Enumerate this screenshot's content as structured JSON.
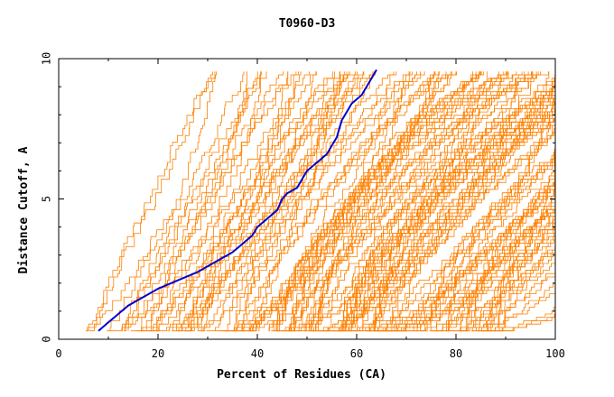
{
  "chart_data": {
    "type": "line",
    "title": "T0960-D3",
    "xlabel": "Percent of Residues (CA)",
    "ylabel": "Distance Cutoff, A",
    "xlim": [
      0,
      100
    ],
    "ylim": [
      0,
      10
    ],
    "x_ticks": [
      0,
      20,
      40,
      60,
      80,
      100
    ],
    "y_ticks": [
      0,
      5,
      10
    ],
    "grid": false,
    "legend": "none",
    "colors": {
      "background_series": "#ff8000",
      "highlight_series": "#0000cc",
      "axes": "#000000"
    },
    "highlight_series": {
      "x": [
        8,
        10,
        12,
        14,
        17,
        20,
        24,
        28,
        32,
        35,
        37,
        39,
        40,
        42,
        44,
        45,
        46,
        48,
        49,
        50,
        52,
        54,
        55,
        56,
        56.5,
        57,
        58,
        59,
        61,
        62,
        63,
        64
      ],
      "y": [
        0.3,
        0.6,
        0.9,
        1.2,
        1.5,
        1.8,
        2.1,
        2.4,
        2.8,
        3.1,
        3.4,
        3.7,
        4.0,
        4.3,
        4.6,
        5.0,
        5.2,
        5.4,
        5.7,
        6.0,
        6.3,
        6.6,
        6.9,
        7.2,
        7.5,
        7.8,
        8.1,
        8.4,
        8.7,
        9.0,
        9.3,
        9.6
      ]
    },
    "background_series_envelope": {
      "left_x": [
        4.5,
        6,
        8,
        10,
        12,
        14,
        15,
        15.5,
        16,
        16,
        16,
        16
      ],
      "right_x": [
        100,
        100,
        100,
        100,
        100,
        100,
        100,
        100,
        100,
        100,
        100,
        100
      ],
      "y": [
        0.3,
        1,
        2,
        3,
        4,
        5,
        6,
        7,
        8,
        8.5,
        9,
        9.6
      ],
      "count": 160
    }
  }
}
